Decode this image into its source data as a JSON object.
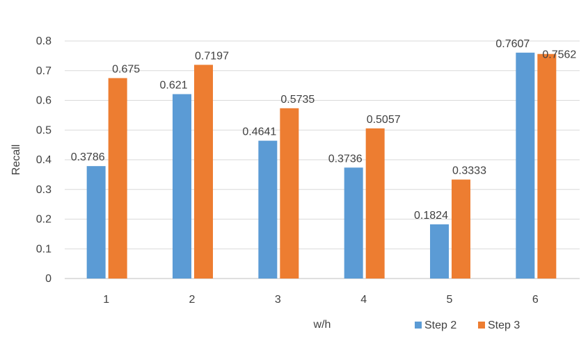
{
  "chart_data": {
    "type": "bar",
    "title": "",
    "xlabel": "w/h",
    "ylabel": "Recall",
    "categories": [
      "1",
      "2",
      "3",
      "4",
      "5",
      "6"
    ],
    "series": [
      {
        "name": "Step 2",
        "color": "#5B9BD5",
        "values": [
          0.3786,
          0.621,
          0.4641,
          0.3736,
          0.1824,
          0.7607
        ],
        "labels": [
          "0.3786",
          "0.621",
          "0.4641",
          "0.3736",
          "0.1824",
          "0.7607"
        ]
      },
      {
        "name": "Step 3",
        "color": "#ED7D31",
        "values": [
          0.675,
          0.7197,
          0.5735,
          0.5057,
          0.3333,
          0.7562
        ],
        "labels": [
          "0.675",
          "0.7197",
          "0.5735",
          "0.5057",
          "0.3333",
          "0.7562"
        ]
      }
    ],
    "ylim": [
      0,
      0.8
    ],
    "yticks": [
      "0",
      "0.1",
      "0.2",
      "0.3",
      "0.4",
      "0.5",
      "0.6",
      "0.7",
      "0.8"
    ],
    "grid": true,
    "legend_position": "bottom-right"
  }
}
